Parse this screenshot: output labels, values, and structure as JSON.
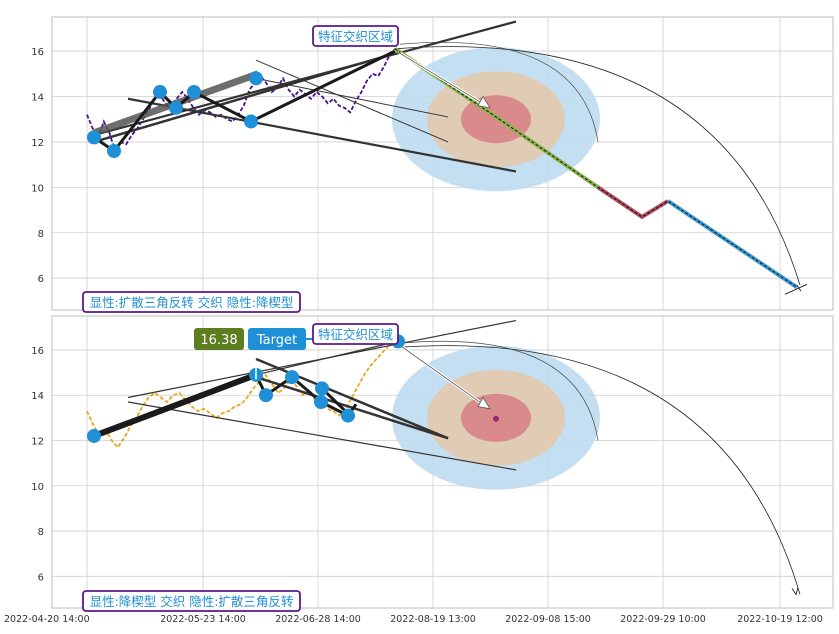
{
  "x_tick_labels": [
    "2022-04-20 14:00",
    "2022-05-23 14:00",
    "2022-06-28 14:00",
    "2022-08-19 13:00",
    "2022-09-08 15:00",
    "2022-09-29 10:00",
    "2022-10-19 12:00"
  ],
  "y_tick_labels": [
    "6",
    "8",
    "10",
    "12",
    "14",
    "16"
  ],
  "colors": {
    "grid": "#cfcfcf",
    "marker": "#1f8fd6",
    "price_top": "#4b0f8c",
    "price_bottom": "#e8a820",
    "label_border": "#5b1a8c",
    "label_text": "#1f8fd6",
    "target_value_bg": "#5c7e1e",
    "target_label_bg": "#1f8fd6",
    "zone_outer": "#bcdcf0",
    "zone_mid": "#e2c9b0",
    "zone_inner": "#d98a8a"
  },
  "top_panel": {
    "zone_label": "特征交织区域",
    "pattern_label": "显性:扩散三角反转 交织 隐性:降楔型"
  },
  "bottom_panel": {
    "zone_label": "特征交织区域",
    "pattern_label": "显性:降楔型 交织 隐性:扩散三角反转",
    "target_value": "16.38",
    "target_label": "Target"
  },
  "chart_data": [
    {
      "type": "line",
      "panel": "top",
      "title": "",
      "ylim": [
        4.6,
        17.5
      ],
      "y_ticks": [
        6,
        8,
        10,
        12,
        14,
        16
      ],
      "x_ticks": [
        "2022-04-20 14:00",
        "2022-05-23 14:00",
        "2022-06-28 14:00",
        "2022-08-19 13:00",
        "2022-09-08 15:00",
        "2022-09-29 10:00",
        "2022-10-19 12:00"
      ],
      "grid": true,
      "series": [
        {
          "values": [
            13.2,
            12.6,
            12.2,
            12.9,
            12.4,
            11.6,
            12.0,
            11.9,
            12.3,
            12.6,
            13.0,
            13.4,
            13.9,
            14.1,
            13.7,
            13.5,
            13.9,
            14.2,
            13.9,
            13.5,
            13.2,
            13.4,
            13.3,
            13.1,
            13.2,
            13.0,
            12.9,
            13.2,
            13.6,
            14.3,
            14.6,
            14.9,
            14.6,
            14.2,
            14.4,
            14.8,
            14.3,
            14.0,
            14.3,
            14.1,
            13.9,
            14.2,
            14.0,
            13.7,
            13.9,
            13.6,
            13.5,
            13.3,
            13.8,
            14.2,
            14.7,
            15.0,
            14.9,
            15.3,
            15.8,
            16.1
          ]
        }
      ],
      "pivot_markers": [
        12.2,
        11.6,
        14.2,
        13.5,
        14.2,
        12.9,
        14.8
      ],
      "projection": [
        16.1,
        13.1,
        10.0,
        8.7,
        9.4,
        5.6
      ]
    },
    {
      "type": "line",
      "panel": "bottom",
      "title": "",
      "ylim": [
        4.6,
        17.5
      ],
      "y_ticks": [
        6,
        8,
        10,
        12,
        14,
        16
      ],
      "x_ticks": [
        "2022-04-20 14:00",
        "2022-05-23 14:00",
        "2022-06-28 14:00",
        "2022-08-19 13:00",
        "2022-09-08 15:00",
        "2022-09-29 10:00",
        "2022-10-19 12:00"
      ],
      "grid": true,
      "series": [
        {
          "values": [
            13.3,
            12.7,
            12.2,
            12.5,
            12.0,
            11.7,
            12.1,
            12.6,
            13.0,
            13.5,
            13.9,
            14.1,
            13.9,
            13.7,
            14.0,
            14.1,
            13.8,
            13.5,
            13.3,
            13.4,
            13.2,
            13.0,
            13.2,
            13.3,
            13.5,
            13.6,
            13.9,
            14.3,
            14.6,
            14.9,
            14.5,
            14.1,
            14.3,
            14.7,
            14.4,
            14.0,
            14.2,
            13.8,
            13.6,
            13.4,
            13.3,
            13.1,
            13.4,
            13.9,
            14.4,
            14.9,
            15.3,
            15.6,
            15.9,
            16.2,
            16.38
          ]
        }
      ],
      "pivot_markers": [
        12.2,
        14.9,
        14.0,
        14.8,
        13.7,
        14.3,
        13.1,
        16.38
      ],
      "target": 16.38
    }
  ]
}
